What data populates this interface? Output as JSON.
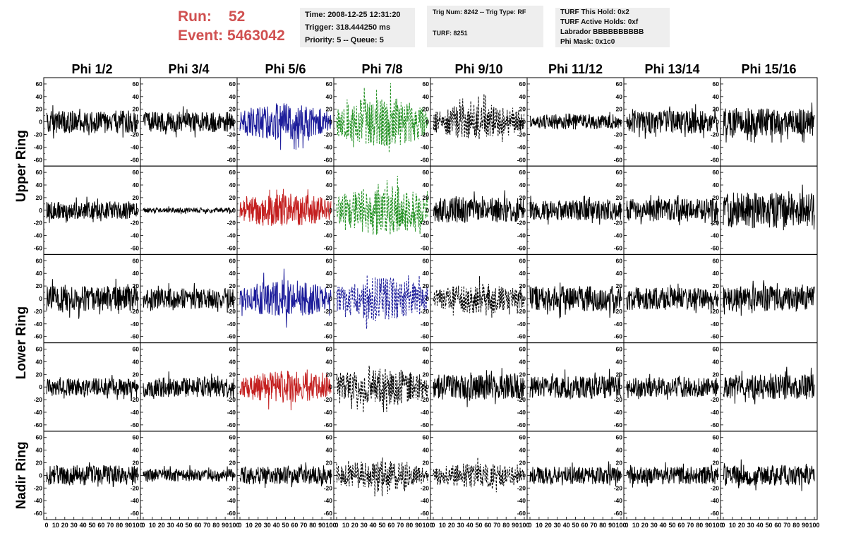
{
  "header": {
    "run_label": "Run:",
    "run_value": "52",
    "event_label": "Event:",
    "event_value": "5463042",
    "time": "Time: 2008-12-25 12:31:20",
    "trigger": "Trigger: 318.444250 ms",
    "priority_queue": "Priority: 5 -- Queue: 5",
    "trig_num_type": "Trig Num: 8242 -- Trig Type: RF",
    "turf": "TURF: 8251",
    "turf_this_hold": "TURF This Hold: 0x2",
    "turf_active_holds": "TURF Active Holds: 0xf",
    "labrador": "Labrador BBBBBBBBBB",
    "phi_mask": "Phi Mask: 0x1c0"
  },
  "chart_data": {
    "type": "line",
    "columns": [
      "Phi 1/2",
      "Phi 3/4",
      "Phi 5/6",
      "Phi 7/8",
      "Phi 9/10",
      "Phi 11/12",
      "Phi 13/14",
      "Phi 15/16"
    ],
    "rows": [
      "Upper Ring",
      "Lower Ring",
      "Nadir Ring"
    ],
    "row_panel_counts": [
      2,
      2,
      1
    ],
    "ylim": [
      -70,
      70
    ],
    "xlim": [
      0,
      100
    ],
    "ytick_labels": [
      "60",
      "40",
      "20",
      "0",
      "-20",
      "-40",
      "-60"
    ],
    "xtick_labels": [
      "0",
      "10",
      "20",
      "30",
      "40",
      "50",
      "60",
      "70",
      "80",
      "90",
      "100"
    ],
    "colors": {
      "black": "#000000",
      "blue": "#1c1c9a",
      "red": "#c42020",
      "green": "#1f8f1f",
      "header_red": "#d05050"
    },
    "panels": [
      [
        "black",
        "black",
        "blue",
        "green-dashed",
        "black-dashed",
        "black",
        "black",
        "black"
      ],
      [
        "black",
        "black",
        "red",
        "green-dashed",
        "black",
        "black",
        "black",
        "black"
      ],
      [
        "black",
        "black",
        "blue",
        "blue-dashed",
        "black-dashed",
        "black",
        "black",
        "black"
      ],
      [
        "black",
        "black",
        "red",
        "black-dashed",
        "black",
        "black",
        "black",
        "black"
      ],
      [
        "black",
        "black",
        "black",
        "black-dashed",
        "black-dashed",
        "black",
        "black",
        "black"
      ]
    ],
    "panel_amplitudes": [
      [
        18,
        16,
        30,
        40,
        28,
        12,
        18,
        22
      ],
      [
        14,
        4,
        28,
        40,
        20,
        16,
        18,
        28
      ],
      [
        20,
        16,
        30,
        35,
        24,
        20,
        18,
        20
      ],
      [
        14,
        16,
        26,
        30,
        20,
        18,
        16,
        20
      ],
      [
        16,
        10,
        14,
        25,
        20,
        14,
        14,
        16
      ]
    ]
  }
}
